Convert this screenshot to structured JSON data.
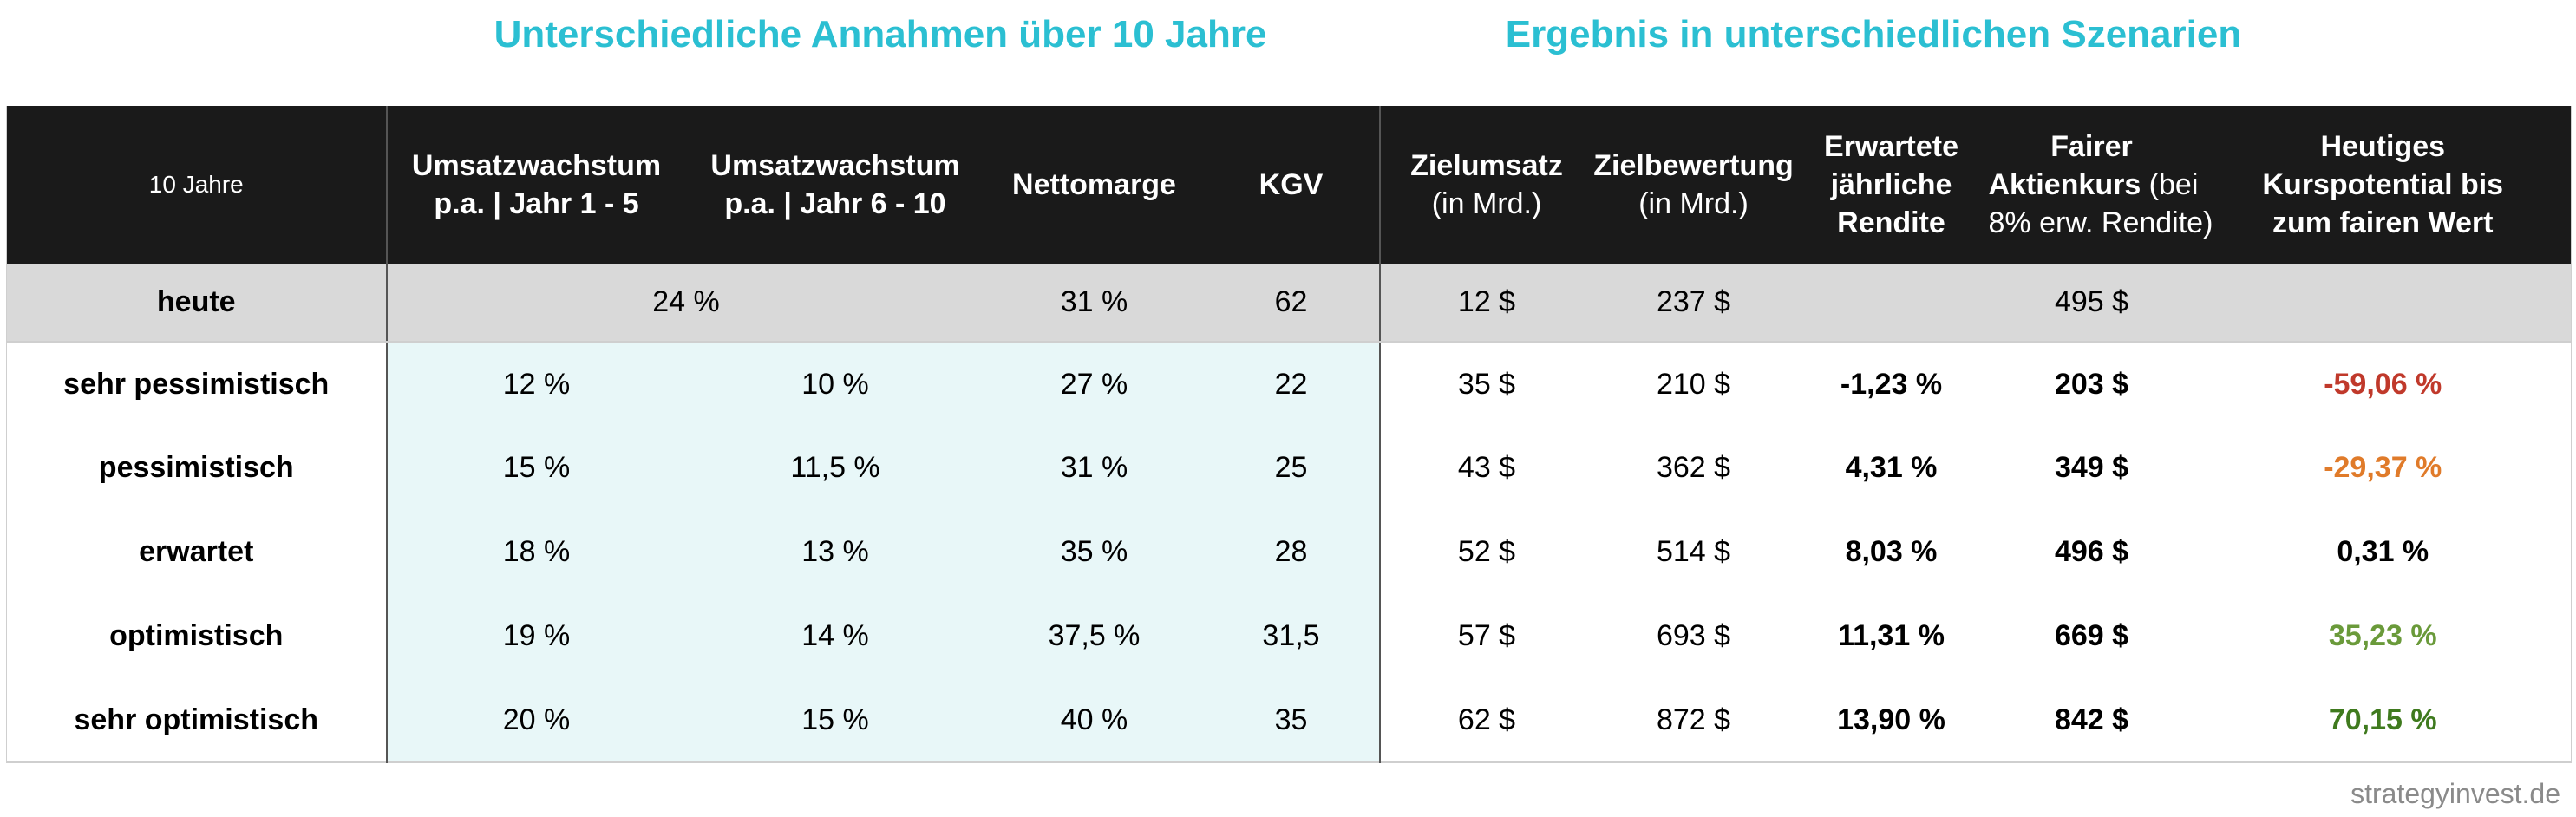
{
  "titles": {
    "left": "Unterschiedliche Annahmen über 10 Jahre",
    "right": "Ergebnis in unterschiedlichen Szenarien"
  },
  "headers": {
    "period": "10 Jahre",
    "growth_1_5_a": "Umsatzwachstum",
    "growth_1_5_b": "p.a. | Jahr 1 - 5",
    "growth_6_10_a": "Umsatzwachstum",
    "growth_6_10_b": "p.a. | Jahr 6 - 10",
    "margin": "Nettomarge",
    "pe": "KGV",
    "target_rev_a": "Zielumsatz",
    "target_rev_b": "(in Mrd.)",
    "target_val_a": "Zielbewertung",
    "target_val_b": "(in Mrd.)",
    "return_a": "Erwartete",
    "return_b": "jährliche",
    "return_c": "Rendite",
    "fair_a": "Fairer",
    "fair_b": "Aktienkurs",
    "fair_b2": " (bei",
    "fair_c": "8% erw. Rendite)",
    "potential_a": "Heutiges",
    "potential_b": "Kurspotential bis",
    "potential_c": "zum fairen Wert"
  },
  "today": {
    "label": "heute",
    "growth": "24 %",
    "margin": "31 %",
    "pe": "62",
    "target_rev": "12 $",
    "target_val": "237 $",
    "fair_price": "495 $"
  },
  "scenarios": [
    {
      "label": "sehr pessimistisch",
      "g1": "12 %",
      "g2": "10 %",
      "margin": "27 %",
      "pe": "22",
      "rev": "35 $",
      "val": "210 $",
      "ret": "-1,23 %",
      "fair": "203 $",
      "pot": "-59,06 %",
      "pot_color": "#c0392b"
    },
    {
      "label": "pessimistisch",
      "g1": "15 %",
      "g2": "11,5 %",
      "margin": "31 %",
      "pe": "25",
      "rev": "43 $",
      "val": "362 $",
      "ret": "4,31 %",
      "fair": "349 $",
      "pot": "-29,37 %",
      "pot_color": "#e07b2a"
    },
    {
      "label": "erwartet",
      "g1": "18 %",
      "g2": "13 %",
      "margin": "35 %",
      "pe": "28",
      "rev": "52 $",
      "val": "514 $",
      "ret": "8,03 %",
      "fair": "496 $",
      "pot": "0,31 %",
      "pot_color": "#000000"
    },
    {
      "label": "optimistisch",
      "g1": "19 %",
      "g2": "14 %",
      "margin": "37,5 %",
      "pe": "31,5",
      "rev": "57 $",
      "val": "693 $",
      "ret": "11,31 %",
      "fair": "669 $",
      "pot": "35,23 %",
      "pot_color": "#6a9a3a"
    },
    {
      "label": "sehr optimistisch",
      "g1": "20 %",
      "g2": "15 %",
      "margin": "40 %",
      "pe": "35",
      "rev": "62 $",
      "val": "872 $",
      "ret": "13,90 %",
      "fair": "842 $",
      "pot": "70,15 %",
      "pot_color": "#3f7a1e"
    }
  ],
  "colors": {
    "title": "#2bbfd2",
    "header_bg": "#1a1a1a",
    "today_bg": "#d9d9d9",
    "assumption_bg": "#e8f7f8"
  },
  "watermark": "strategyinvest.de"
}
